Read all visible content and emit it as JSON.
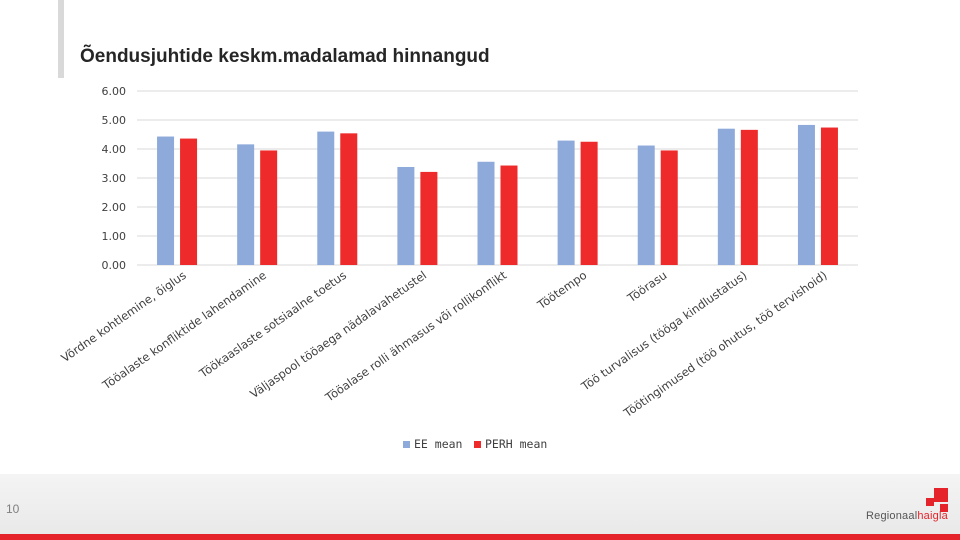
{
  "slide": {
    "title": "Õendusjuhtide keskm.madalamad hinnangud",
    "page_number": "10",
    "logo_text_a": "Regionaal",
    "logo_text_b": "haigla"
  },
  "colors": {
    "ee": "#8eaadb",
    "perh": "#ee2a2a",
    "grid": "#d9d9d9",
    "text": "#404040"
  },
  "chart_data": {
    "type": "bar",
    "title": "",
    "xlabel": "",
    "ylabel": "",
    "ylim": [
      0,
      6
    ],
    "yticks": [
      "0.00",
      "1.00",
      "2.00",
      "3.00",
      "4.00",
      "5.00",
      "6.00"
    ],
    "grid": true,
    "legend_position": "bottom",
    "categories": [
      "Võrdne kohtlemine, õiglus",
      "Tööalaste konfliktide lahendamine",
      "Töökaaslaste sotsiaalne toetus",
      "Väljaspool tööaega nädalavahetustel",
      "Tööalase rolli ähmasus või rollikonflikt",
      "Töötempo",
      "Töörasu",
      "Töö turvalisus (tööga kindlustatus)",
      "Töötingimused (töö ohutus, töö tervishoid)"
    ],
    "series": [
      {
        "name": "EE mean",
        "values": [
          4.43,
          4.16,
          4.6,
          3.38,
          3.56,
          4.29,
          4.12,
          4.7,
          4.83
        ]
      },
      {
        "name": "PERH mean",
        "values": [
          4.36,
          3.95,
          4.54,
          3.21,
          3.43,
          4.25,
          3.95,
          4.66,
          4.74
        ]
      }
    ]
  }
}
